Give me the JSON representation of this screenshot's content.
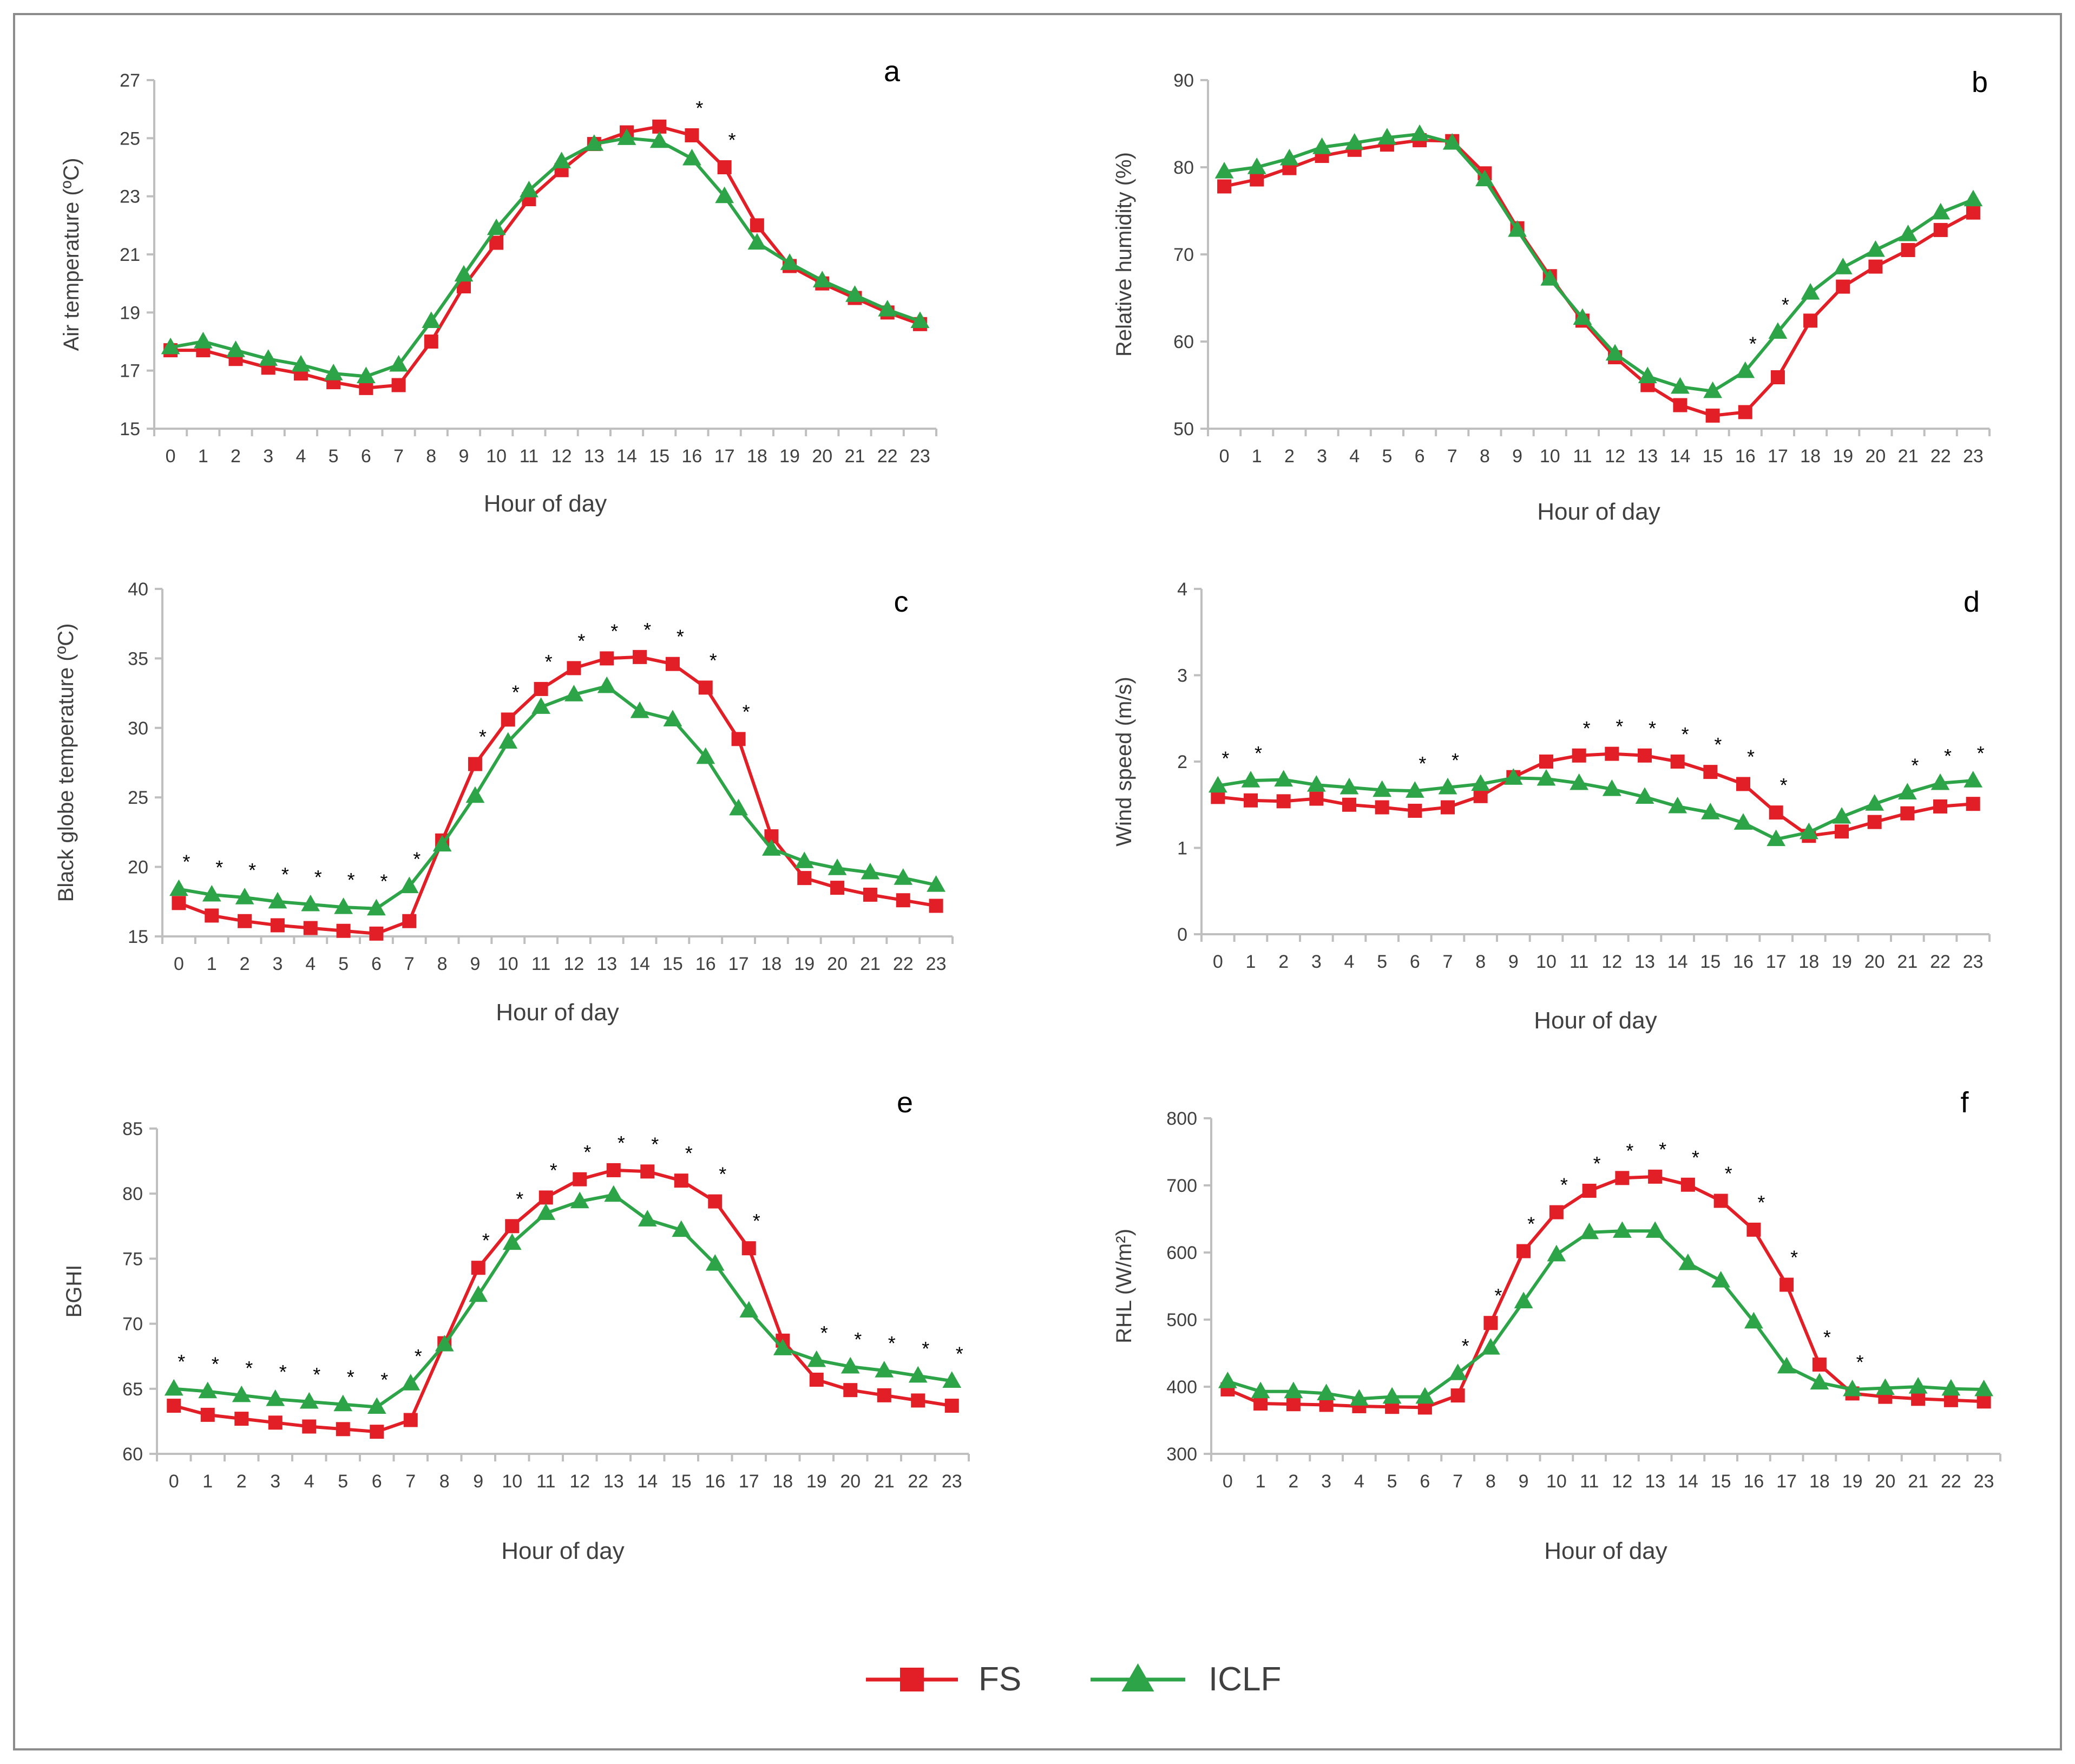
{
  "colors": {
    "FS": "#e21f26",
    "ICLF": "#2ea448",
    "axis": "#bfbfbf",
    "frame": "#8c8c8c",
    "text": "#404040",
    "panel_letter": "#000000"
  },
  "legend": {
    "items": [
      {
        "name": "FS",
        "marker": "square"
      },
      {
        "name": "ICLF",
        "marker": "triangle"
      }
    ]
  },
  "chart_data": [
    {
      "panel": "a",
      "type": "line",
      "xlabel": "Hour of day",
      "ylabel": "Air temperature (ºC)",
      "x": [
        0,
        1,
        2,
        3,
        4,
        5,
        6,
        7,
        8,
        9,
        10,
        11,
        12,
        13,
        14,
        15,
        16,
        17,
        18,
        19,
        20,
        21,
        22,
        23
      ],
      "ylim": [
        15,
        27
      ],
      "yticks": [
        15,
        17,
        19,
        21,
        23,
        25,
        27
      ],
      "series": [
        {
          "name": "FS",
          "values": [
            17.7,
            17.7,
            17.4,
            17.1,
            16.9,
            16.6,
            16.4,
            16.5,
            18.0,
            19.9,
            21.4,
            22.9,
            23.9,
            24.8,
            25.2,
            25.4,
            25.1,
            24.0,
            22.0,
            20.6,
            20.0,
            19.5,
            19.0,
            18.6
          ]
        },
        {
          "name": "ICLF",
          "values": [
            17.8,
            18.0,
            17.7,
            17.4,
            17.2,
            16.9,
            16.8,
            17.2,
            18.7,
            20.3,
            21.9,
            23.2,
            24.2,
            24.8,
            25.0,
            24.9,
            24.3,
            23.0,
            21.4,
            20.7,
            20.1,
            19.6,
            19.1,
            18.7
          ]
        }
      ],
      "significant_hours": [
        16,
        17
      ],
      "star_anchor": "max"
    },
    {
      "panel": "b",
      "type": "line",
      "xlabel": "Hour of day",
      "ylabel": "Relative humidity (%)",
      "x": [
        0,
        1,
        2,
        3,
        4,
        5,
        6,
        7,
        8,
        9,
        10,
        11,
        12,
        13,
        14,
        15,
        16,
        17,
        18,
        19,
        20,
        21,
        22,
        23
      ],
      "ylim": [
        50,
        90
      ],
      "yticks": [
        50,
        60,
        70,
        80,
        90
      ],
      "series": [
        {
          "name": "FS",
          "values": [
            77.8,
            78.6,
            79.9,
            81.3,
            82.0,
            82.6,
            83.1,
            83.0,
            79.3,
            73.0,
            67.5,
            62.4,
            58.2,
            55.0,
            52.7,
            51.5,
            51.9,
            55.9,
            62.4,
            66.3,
            68.6,
            70.5,
            72.8,
            74.8
          ]
        },
        {
          "name": "ICLF",
          "values": [
            79.5,
            80.0,
            81.0,
            82.3,
            82.8,
            83.4,
            83.8,
            82.8,
            78.6,
            72.8,
            67.2,
            62.7,
            58.6,
            56.0,
            54.8,
            54.3,
            56.6,
            61.1,
            65.6,
            68.5,
            70.5,
            72.3,
            74.8,
            76.3
          ]
        }
      ],
      "significant_hours": [
        16,
        17
      ],
      "star_anchor": "max"
    },
    {
      "panel": "c",
      "type": "line",
      "xlabel": "Hour of day",
      "ylabel": "Black globe temperature (ºC)",
      "x": [
        0,
        1,
        2,
        3,
        4,
        5,
        6,
        7,
        8,
        9,
        10,
        11,
        12,
        13,
        14,
        15,
        16,
        17,
        18,
        19,
        20,
        21,
        22,
        23
      ],
      "ylim": [
        15,
        40
      ],
      "yticks": [
        15,
        20,
        25,
        30,
        35,
        40
      ],
      "series": [
        {
          "name": "FS",
          "values": [
            17.4,
            16.5,
            16.1,
            15.8,
            15.6,
            15.4,
            15.2,
            16.1,
            21.9,
            27.4,
            30.6,
            32.8,
            34.3,
            35.0,
            35.1,
            34.6,
            32.9,
            29.2,
            22.2,
            19.2,
            18.5,
            18.0,
            17.6,
            17.2
          ]
        },
        {
          "name": "ICLF",
          "values": [
            18.4,
            18.0,
            17.8,
            17.5,
            17.3,
            17.1,
            17.0,
            18.6,
            21.6,
            25.1,
            29.0,
            31.5,
            32.4,
            33.0,
            31.2,
            30.6,
            27.9,
            24.2,
            21.3,
            20.4,
            19.9,
            19.6,
            19.2,
            18.7
          ]
        }
      ],
      "significant_hours": [
        0,
        1,
        2,
        3,
        4,
        5,
        6,
        7,
        9,
        10,
        11,
        12,
        13,
        14,
        15,
        16,
        17
      ],
      "star_anchor": "max"
    },
    {
      "panel": "d",
      "type": "line",
      "xlabel": "Hour of day",
      "ylabel": "Wind speed (m/s)",
      "x": [
        0,
        1,
        2,
        3,
        4,
        5,
        6,
        7,
        8,
        9,
        10,
        11,
        12,
        13,
        14,
        15,
        16,
        17,
        18,
        19,
        20,
        21,
        22,
        23
      ],
      "ylim": [
        0,
        4
      ],
      "yticks": [
        0,
        1,
        2,
        3,
        4
      ],
      "series": [
        {
          "name": "FS",
          "values": [
            1.59,
            1.55,
            1.54,
            1.57,
            1.5,
            1.47,
            1.43,
            1.47,
            1.6,
            1.82,
            2.0,
            2.07,
            2.09,
            2.07,
            2.0,
            1.88,
            1.74,
            1.41,
            1.14,
            1.19,
            1.3,
            1.4,
            1.48,
            1.51
          ]
        },
        {
          "name": "ICLF",
          "values": [
            1.72,
            1.78,
            1.79,
            1.73,
            1.7,
            1.67,
            1.66,
            1.7,
            1.74,
            1.81,
            1.8,
            1.75,
            1.68,
            1.59,
            1.48,
            1.41,
            1.29,
            1.1,
            1.18,
            1.36,
            1.51,
            1.64,
            1.75,
            1.78
          ]
        }
      ],
      "significant_hours": [
        0,
        1,
        6,
        7,
        11,
        12,
        13,
        14,
        15,
        16,
        17,
        21,
        22,
        23
      ],
      "star_anchor": "max"
    },
    {
      "panel": "e",
      "type": "line",
      "xlabel": "Hour of day",
      "ylabel": "BGHI",
      "x": [
        0,
        1,
        2,
        3,
        4,
        5,
        6,
        7,
        8,
        9,
        10,
        11,
        12,
        13,
        14,
        15,
        16,
        17,
        18,
        19,
        20,
        21,
        22,
        23
      ],
      "ylim": [
        60,
        85
      ],
      "yticks": [
        60,
        65,
        70,
        75,
        80,
        85
      ],
      "series": [
        {
          "name": "FS",
          "values": [
            63.7,
            63.0,
            62.7,
            62.4,
            62.1,
            61.9,
            61.7,
            62.6,
            68.5,
            74.3,
            77.5,
            79.7,
            81.1,
            81.8,
            81.7,
            81.0,
            79.4,
            75.8,
            68.7,
            65.7,
            64.9,
            64.5,
            64.1,
            63.7
          ]
        },
        {
          "name": "ICLF",
          "values": [
            65.0,
            64.8,
            64.5,
            64.2,
            64.0,
            63.8,
            63.6,
            65.4,
            68.4,
            72.2,
            76.2,
            78.5,
            79.4,
            79.9,
            78.0,
            77.2,
            74.6,
            71.0,
            68.1,
            67.2,
            66.7,
            66.4,
            66.0,
            65.6
          ]
        }
      ],
      "significant_hours": [
        0,
        1,
        2,
        3,
        4,
        5,
        6,
        7,
        9,
        10,
        11,
        12,
        13,
        14,
        15,
        16,
        17,
        19,
        20,
        21,
        22,
        23
      ],
      "star_anchor": "max"
    },
    {
      "panel": "f",
      "type": "line",
      "xlabel": "Hour of day",
      "ylabel": "RHL (W/m²)",
      "x": [
        0,
        1,
        2,
        3,
        4,
        5,
        6,
        7,
        8,
        9,
        10,
        11,
        12,
        13,
        14,
        15,
        16,
        17,
        18,
        19,
        20,
        21,
        22,
        23
      ],
      "ylim": [
        300,
        800
      ],
      "yticks": [
        300,
        400,
        500,
        600,
        700,
        800
      ],
      "series": [
        {
          "name": "FS",
          "values": [
            396,
            375,
            374,
            373,
            371,
            370,
            369,
            387,
            495,
            602,
            660,
            692,
            711,
            713,
            701,
            677,
            634,
            552,
            433,
            390,
            385,
            382,
            380,
            378
          ]
        },
        {
          "name": "ICLF",
          "values": [
            408,
            393,
            393,
            390,
            382,
            385,
            385,
            420,
            458,
            527,
            597,
            630,
            632,
            632,
            584,
            558,
            497,
            430,
            406,
            396,
            398,
            400,
            397,
            396
          ]
        }
      ],
      "significant_hours": [
        7,
        8,
        9,
        10,
        11,
        12,
        13,
        14,
        15,
        16,
        17,
        18,
        19
      ],
      "star_anchor": "max"
    }
  ]
}
